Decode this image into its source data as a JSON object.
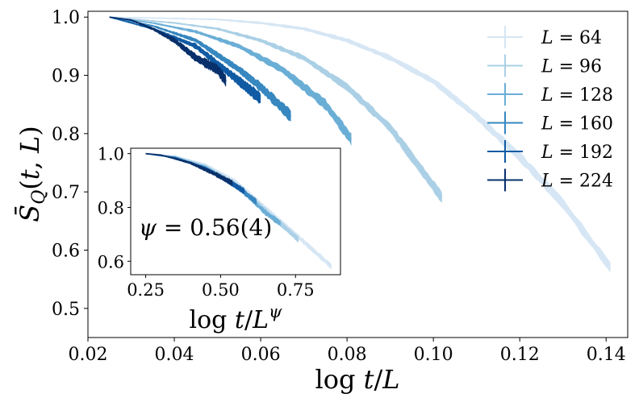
{
  "chart_data": [
    {
      "type": "line",
      "xlabel": "log t/L",
      "ylabel": "S̄_Q(t, L)",
      "xlim": [
        0.02,
        0.145
      ],
      "ylim": [
        0.45,
        1.01
      ],
      "xticks": [
        0.02,
        0.04,
        0.06,
        0.08,
        0.1,
        0.12,
        0.14
      ],
      "xtick_labels": [
        "0.02",
        "0.04",
        "0.06",
        "0.08",
        "0.10",
        "0.12",
        "0.14"
      ],
      "yticks": [
        0.5,
        0.6,
        0.7,
        0.8,
        0.9,
        1.0
      ],
      "ytick_labels": [
        "0.5",
        "0.6",
        "0.7",
        "0.8",
        "0.9",
        "1.0"
      ],
      "legend_position": "top-right",
      "series": [
        {
          "name": "L = 64",
          "color": "#d6e6f4",
          "x": [
            0.025,
            0.05,
            0.06,
            0.07,
            0.08,
            0.09,
            0.1,
            0.11,
            0.12,
            0.13,
            0.141
          ],
          "y": [
            1.0,
            0.996,
            0.99,
            0.98,
            0.96,
            0.93,
            0.89,
            0.83,
            0.76,
            0.68,
            0.57
          ]
        },
        {
          "name": "L = 96",
          "color": "#abd0e6",
          "x": [
            0.025,
            0.04,
            0.05,
            0.06,
            0.07,
            0.08,
            0.09,
            0.102
          ],
          "y": [
            1.0,
            0.99,
            0.98,
            0.96,
            0.93,
            0.88,
            0.81,
            0.69
          ]
        },
        {
          "name": "L = 128",
          "color": "#6aaed6",
          "x": [
            0.025,
            0.035,
            0.045,
            0.055,
            0.065,
            0.075,
            0.081
          ],
          "y": [
            1.0,
            0.99,
            0.975,
            0.95,
            0.91,
            0.85,
            0.79
          ]
        },
        {
          "name": "L = 160",
          "color": "#3787c0",
          "x": [
            0.025,
            0.035,
            0.045,
            0.055,
            0.06,
            0.067
          ],
          "y": [
            1.0,
            0.985,
            0.96,
            0.91,
            0.88,
            0.83
          ]
        },
        {
          "name": "L = 192",
          "color": "#105ba4",
          "x": [
            0.025,
            0.035,
            0.045,
            0.05,
            0.055,
            0.06
          ],
          "y": [
            1.0,
            0.98,
            0.95,
            0.92,
            0.89,
            0.86
          ]
        },
        {
          "name": "L = 224",
          "color": "#08306b",
          "x": [
            0.025,
            0.03,
            0.035,
            0.04,
            0.045,
            0.05,
            0.052
          ],
          "y": [
            1.0,
            0.995,
            0.98,
            0.96,
            0.93,
            0.91,
            0.89
          ]
        }
      ]
    },
    {
      "type": "line",
      "xlabel": "log t/L^ψ",
      "xlim": [
        0.2,
        0.9
      ],
      "ylim": [
        0.55,
        1.02
      ],
      "xticks": [
        0.25,
        0.5,
        0.75
      ],
      "xtick_labels": [
        "0.25",
        "0.50",
        "0.75"
      ],
      "yticks": [
        0.6,
        0.8,
        1.0
      ],
      "ytick_labels": [
        "0.6",
        "0.8",
        "1.0"
      ],
      "annotation": "ψ = 0.56(4)",
      "series": [
        {
          "name": "L = 64",
          "color": "#d6e6f4",
          "x": [
            0.25,
            0.35,
            0.45,
            0.55,
            0.65,
            0.75,
            0.87
          ],
          "y": [
            1.0,
            0.99,
            0.96,
            0.9,
            0.8,
            0.7,
            0.58
          ]
        },
        {
          "name": "L = 96",
          "color": "#abd0e6",
          "x": [
            0.25,
            0.35,
            0.45,
            0.55,
            0.65,
            0.76
          ],
          "y": [
            1.0,
            0.99,
            0.955,
            0.89,
            0.79,
            0.68
          ]
        },
        {
          "name": "L = 128",
          "color": "#6aaed6",
          "x": [
            0.25,
            0.35,
            0.45,
            0.55,
            0.65,
            0.7
          ],
          "y": [
            1.0,
            0.985,
            0.95,
            0.885,
            0.78,
            0.74
          ]
        },
        {
          "name": "L = 160",
          "color": "#3787c0",
          "x": [
            0.25,
            0.35,
            0.45,
            0.55,
            0.62
          ],
          "y": [
            1.0,
            0.985,
            0.945,
            0.88,
            0.82
          ]
        },
        {
          "name": "L = 192",
          "color": "#105ba4",
          "x": [
            0.25,
            0.35,
            0.45,
            0.52,
            0.58
          ],
          "y": [
            1.0,
            0.985,
            0.945,
            0.9,
            0.86
          ]
        },
        {
          "name": "L = 224",
          "color": "#08306b",
          "x": [
            0.25,
            0.3,
            0.4,
            0.48,
            0.54
          ],
          "y": [
            1.0,
            0.995,
            0.965,
            0.925,
            0.89
          ]
        }
      ]
    }
  ]
}
